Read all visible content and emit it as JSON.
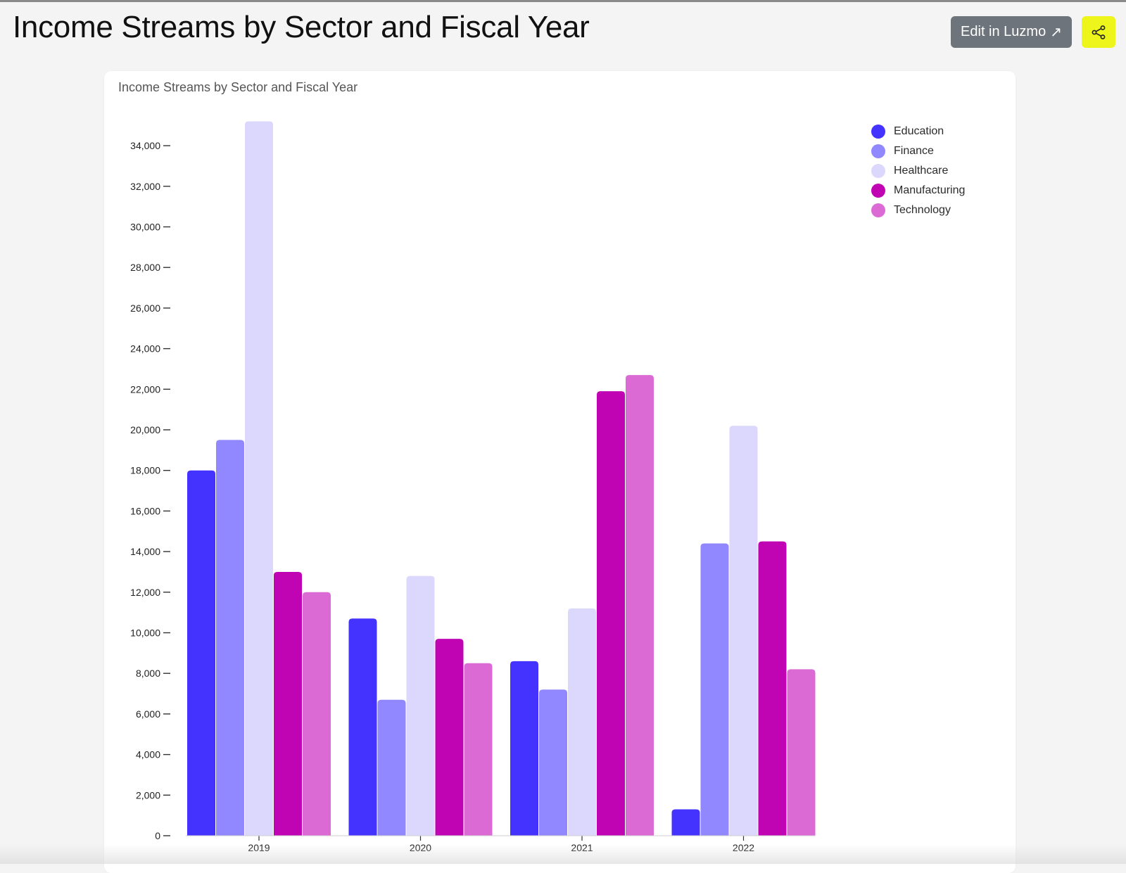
{
  "header": {
    "title": "Income Streams by Sector and Fiscal Year",
    "edit_label": "Edit in Luzmo",
    "edit_icon": "external-arrow-icon",
    "share_icon": "share-icon",
    "share_color": "#eef51a",
    "edit_color": "#6e747b"
  },
  "chart_data": {
    "type": "bar",
    "title": "Income Streams by Sector and Fiscal Year",
    "xlabel": "",
    "ylabel": "",
    "categories": [
      "2019",
      "2020",
      "2021",
      "2022"
    ],
    "ylim": [
      0,
      35000
    ],
    "yticks": [
      0,
      2000,
      4000,
      6000,
      8000,
      10000,
      12000,
      14000,
      16000,
      18000,
      20000,
      22000,
      24000,
      26000,
      28000,
      30000,
      32000,
      34000
    ],
    "ytick_labels": [
      "0",
      "2,000",
      "4,000",
      "6,000",
      "8,000",
      "10,000",
      "12,000",
      "14,000",
      "16,000",
      "18,000",
      "20,000",
      "22,000",
      "24,000",
      "26,000",
      "28,000",
      "30,000",
      "32,000",
      "34,000"
    ],
    "grid": false,
    "legend_position": "top-right",
    "series": [
      {
        "name": "Education",
        "color": "#4433ff",
        "values": [
          18000,
          10700,
          8600,
          1300
        ]
      },
      {
        "name": "Finance",
        "color": "#9188ff",
        "values": [
          19500,
          6700,
          7200,
          14400
        ]
      },
      {
        "name": "Healthcare",
        "color": "#dcd7fc",
        "values": [
          35200,
          12800,
          11200,
          20200
        ]
      },
      {
        "name": "Manufacturing",
        "color": "#c004b4",
        "values": [
          13000,
          9700,
          21900,
          14500
        ]
      },
      {
        "name": "Technology",
        "color": "#dc6ad4",
        "values": [
          12000,
          8500,
          22700,
          8200
        ]
      }
    ]
  }
}
